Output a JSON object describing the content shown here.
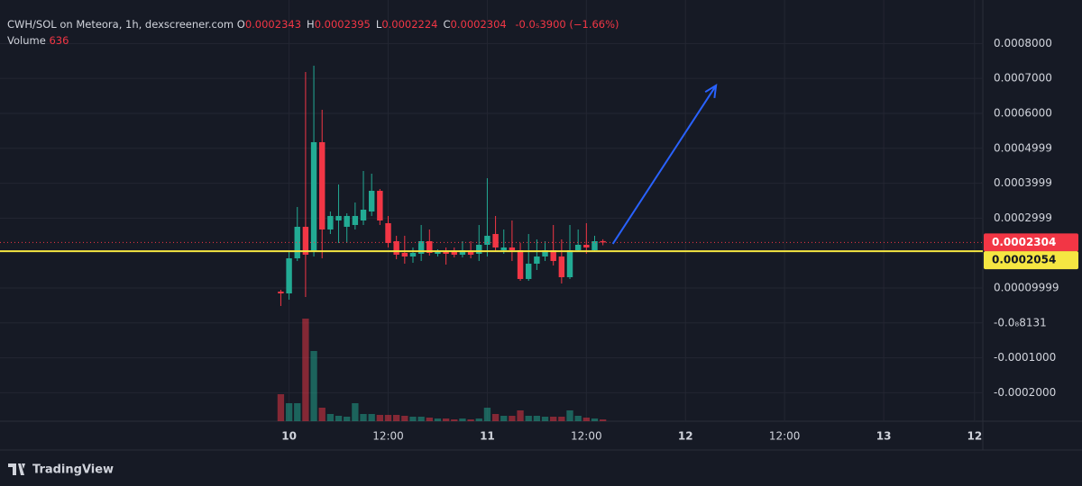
{
  "header": {
    "title": "CWH/SOL on Meteora, 1h, dexscreener.com",
    "ohlc": [
      {
        "label": "O",
        "value": "0.0002343"
      },
      {
        "label": "H",
        "value": "0.0002395"
      },
      {
        "label": "L",
        "value": "0.0002224"
      },
      {
        "label": "C",
        "value": "0.0002304"
      }
    ],
    "change": "-0.0₅3900 (−1.66%)",
    "volume_label": "Volume",
    "volume": "636"
  },
  "footer": "TradingView",
  "chart_data": {
    "type": "candlestick",
    "x": [
      -1,
      0,
      1,
      2,
      3,
      4,
      5,
      6,
      7,
      8,
      9,
      10,
      11,
      12,
      13,
      14,
      15,
      16,
      17,
      18,
      19,
      20,
      21,
      22,
      23,
      24,
      25,
      26,
      27,
      28,
      29,
      30,
      31,
      32,
      33,
      34,
      35,
      36,
      37,
      38
    ],
    "open": [
      8.97e-05,
      8.45e-05,
      0.000185,
      0.0002752,
      0.0002031,
      0.0005175,
      0.0002675,
      0.0002933,
      0.0002752,
      0.0002804,
      0.0002933,
      0.000319,
      0.0003783,
      0.0002855,
      0.000234,
      0.0002005,
      0.0001902,
      0.0001979,
      0.000234,
      0.0001979,
      0.0002031,
      0.0002031,
      0.0001953,
      0.0002057,
      0.0001979,
      0.0002237,
      0.0002546,
      0.0002082,
      0.000216,
      0.0002082,
      0.0001258,
      0.0001696,
      0.0001902,
      0.0002082,
      0.0001902,
      0.0001309,
      0.0002082,
      0.0002237,
      0.0002082,
      0.0002343
    ],
    "high": [
      9.48e-05,
      0.0002031,
      0.0003319,
      0.0007185,
      0.0007365,
      0.0006102,
      0.000319,
      0.0003964,
      0.0003139,
      0.0003448,
      0.000435,
      0.0004273,
      0.0003835,
      0.0003062,
      0.0002495,
      0.0002495,
      0.000216,
      0.0002804,
      0.0002675,
      0.0002108,
      0.000216,
      0.000216,
      0.000234,
      0.000234,
      0.0002804,
      0.0004144,
      0.0003062,
      0.0002675,
      0.0002933,
      0.0002289,
      0.0002546,
      0.0002392,
      0.000234,
      0.0002804,
      0.0002392,
      0.0002804,
      0.0002675,
      0.0002855,
      0.0002495,
      0.0002395
    ],
    "low": [
      4.85e-05,
      6.65e-05,
      0.0001773,
      7.42e-05,
      0.0001902,
      0.000185,
      0.0002546,
      0.0002289,
      0.0002289,
      0.0002675,
      0.0002804,
      0.0003062,
      0.0002804,
      0.000216,
      0.0001825,
      0.0001696,
      0.0001722,
      0.0001773,
      0.0001928,
      0.0001902,
      0.000167,
      0.0001876,
      0.0001876,
      0.000185,
      0.0001773,
      0.0001902,
      0.0002031,
      0.0001979,
      0.0001773,
      0.0001206,
      0.0001206,
      0.0001515,
      0.0001773,
      0.0001644,
      0.0001129,
      0.0001258,
      0.0002031,
      0.0001979,
      0.0002031,
      0.0002224
    ],
    "close": [
      8.45e-05,
      0.000185,
      0.0002752,
      0.0001953,
      0.0005175,
      0.0002675,
      0.0003062,
      0.0003062,
      0.0003062,
      0.0003062,
      0.0003242,
      0.0003783,
      0.0002933,
      0.0002289,
      0.0001953,
      0.0001902,
      0.0002005,
      0.000234,
      0.0002005,
      0.0002031,
      0.0001979,
      0.0001953,
      0.0002082,
      0.0001953,
      0.0002237,
      0.0002495,
      0.000216,
      0.000216,
      0.0002082,
      0.0001258,
      0.0001696,
      0.0001902,
      0.0002082,
      0.0001773,
      0.0001309,
      0.0002082,
      0.0002237,
      0.000216,
      0.000234,
      0.0002304
    ],
    "volume": [
      9540,
      6360,
      6360,
      36252,
      24804,
      4770,
      2544,
      1908,
      1590,
      6360,
      2544,
      2544,
      2226,
      2226,
      2226,
      1908,
      1590,
      1590,
      1272,
      954,
      954,
      636,
      954,
      636,
      954,
      4770,
      2544,
      1908,
      1908,
      3816,
      1908,
      1908,
      1590,
      1590,
      1590,
      3816,
      1908,
      1272,
      954,
      636
    ],
    "colors": {
      "up": "#22ab94",
      "down": "#f23645",
      "marker": "#f5e642",
      "arrow": "#2962ff"
    },
    "xlim": [
      -35,
      84
    ],
    "ylim": [
      -0.0002814,
      0.0009246
    ],
    "xticks": [
      {
        "value": 0,
        "label": "10"
      },
      {
        "value": 12,
        "label": "12:00"
      },
      {
        "value": 24,
        "label": "11"
      },
      {
        "value": 36,
        "label": "12:00"
      },
      {
        "value": 48,
        "label": "12"
      },
      {
        "value": 60,
        "label": "12:00"
      },
      {
        "value": 72,
        "label": "13"
      },
      {
        "value": 83,
        "label": "12"
      }
    ],
    "yticks": [
      {
        "value": 0.0008,
        "label": "0.0008000"
      },
      {
        "value": 0.0007,
        "label": "0.0007000"
      },
      {
        "value": 0.0006,
        "label": "0.0006000"
      },
      {
        "value": 0.0004999,
        "label": "0.0004999"
      },
      {
        "value": 0.0003999,
        "label": "0.0003999"
      },
      {
        "value": 0.0002999,
        "label": "0.0002999"
      },
      {
        "value": 9.999e-05,
        "label": "0.00009999"
      },
      {
        "value": -8.131e-09,
        "label": "-0.0₈8131"
      },
      {
        "value": -0.0001,
        "label": "-0.0001000"
      },
      {
        "value": -0.0002,
        "label": "-0.0002000"
      }
    ],
    "grid": true,
    "last_price": {
      "value": 0.0002304,
      "label": "0.0002304"
    },
    "marker_line": {
      "value": 0.0002054,
      "label": "0.0002054"
    },
    "arrow": {
      "x": [
        39.2,
        51.7
      ],
      "y": [
        0.0002263,
        0.0006799
      ]
    }
  }
}
